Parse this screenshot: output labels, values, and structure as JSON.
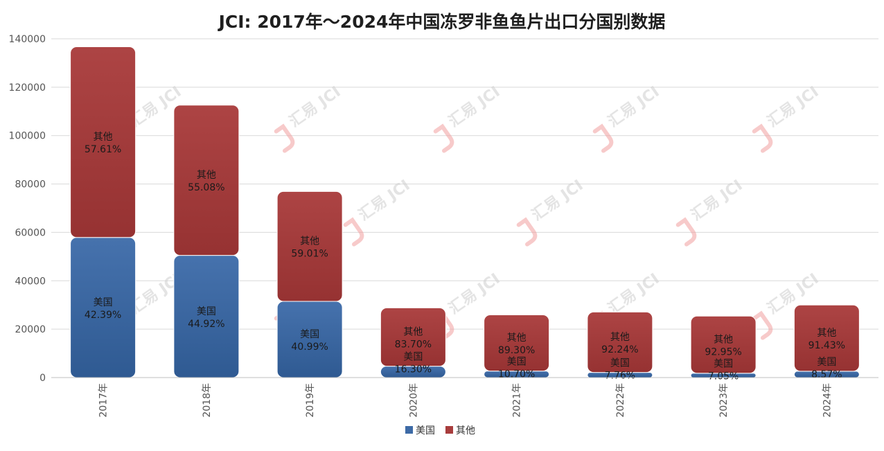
{
  "chart_data": {
    "type": "bar",
    "stacked": true,
    "title": "JCI: 2017年～2024年中国冻罗非鱼鱼片出口分国别数据",
    "categories": [
      "2017年",
      "2018年",
      "2019年",
      "2020年",
      "2021年",
      "2022年",
      "2023年",
      "2024年"
    ],
    "series": [
      {
        "name": "美国",
        "color": "#3d6aa6",
        "values": [
          57900,
          50500,
          31500,
          4700,
          2700,
          2100,
          1800,
          2600
        ],
        "labels": [
          "42.39%",
          "44.92%",
          "40.99%",
          "16.30%",
          "10.70%",
          "7.76%",
          "7.05%",
          "8.57%"
        ]
      },
      {
        "name": "其他",
        "color": "#a83d3d",
        "values": [
          78800,
          62100,
          45400,
          24100,
          23200,
          25000,
          23600,
          27400
        ],
        "labels": [
          "57.61%",
          "55.08%",
          "59.01%",
          "83.70%",
          "89.30%",
          "92.24%",
          "92.95%",
          "91.43%"
        ]
      }
    ],
    "yticks": [
      "0",
      "20000",
      "40000",
      "60000",
      "80000",
      "100000",
      "120000",
      "140000"
    ],
    "ylim": [
      0,
      140000
    ],
    "grid": true,
    "legend_position": "bottom-center",
    "watermark_text": "汇易 JCI"
  }
}
